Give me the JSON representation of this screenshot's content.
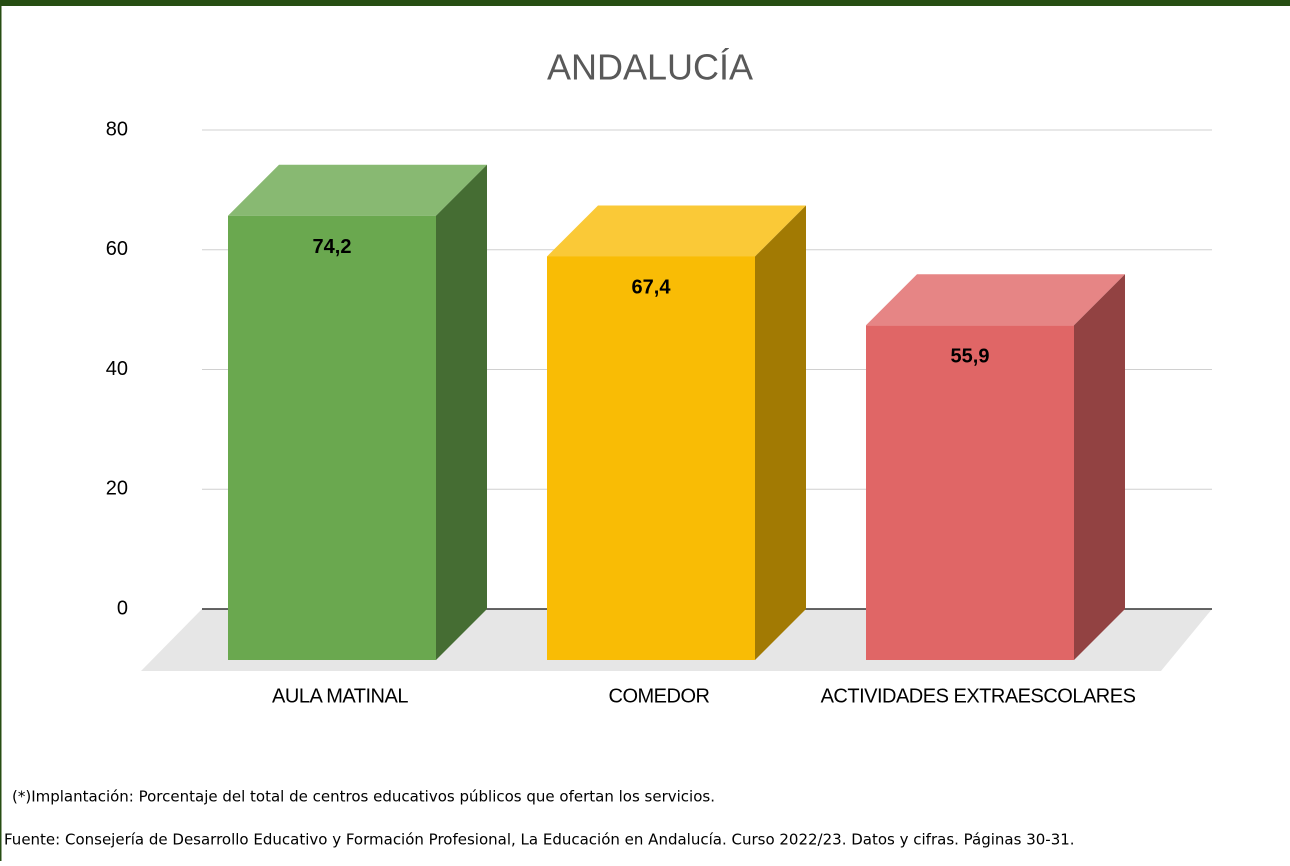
{
  "chart_data": {
    "type": "bar3d",
    "title": "ANDALUCÍA",
    "categories": [
      "AULA MATINAL",
      "COMEDOR",
      "ACTIVIDADES EXTRAESCOLARES"
    ],
    "values": [
      74.2,
      67.4,
      55.9
    ],
    "value_labels": [
      "74,2",
      "67,4",
      "55,9"
    ],
    "colors": [
      "#6aa84f",
      "#f9bc05",
      "#e06666"
    ],
    "ylim": [
      0,
      80
    ],
    "yticks": [
      0,
      20,
      40,
      60,
      80
    ],
    "grid": true
  },
  "footnote": "(*)Implantación: Porcentaje del total de centros educativos públicos que ofertan los servicios.",
  "source": "Fuente: Consejería de Desarrollo Educativo y Formación Profesional, La Educación en Andalucía. Curso 2022/23. Datos y cifras. Páginas 30-31."
}
